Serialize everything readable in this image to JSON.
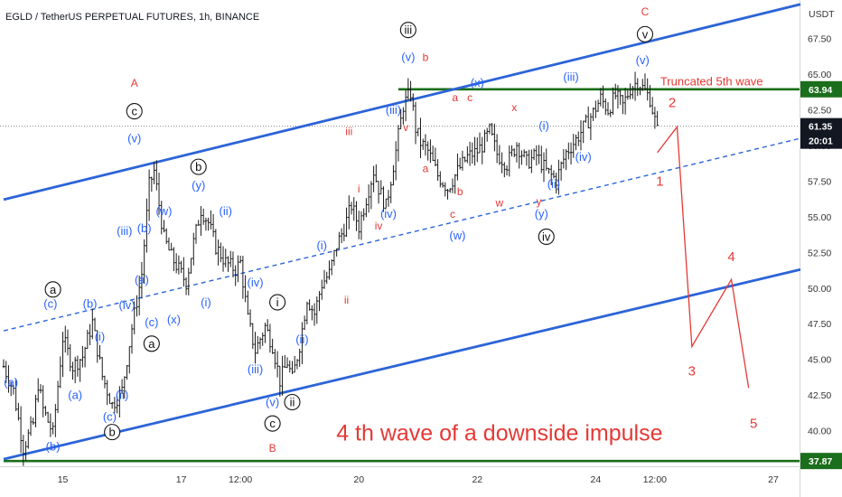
{
  "header": {
    "title": "EGLD / TetherUS PERPETUAL FUTURES, 1h, BINANCE"
  },
  "colors": {
    "blue": "#2962ff",
    "channel": "#2c64d8",
    "red": "#e53935",
    "green": "#1b6e1b",
    "black": "#111111",
    "candle": "#1a1a1a"
  },
  "chart_data": {
    "type": "candlestick",
    "y_unit": "USDT",
    "ylim": [
      37.5,
      70.2
    ],
    "y_ticks": [
      40.0,
      42.5,
      45.0,
      47.5,
      50.0,
      52.5,
      55.0,
      57.5,
      60.0,
      62.5,
      65.0,
      67.5
    ],
    "x_ticks": [
      {
        "label": "15",
        "t": 13
      },
      {
        "label": "17",
        "t": 61
      },
      {
        "label": "12:00",
        "t": 85
      },
      {
        "label": "20",
        "t": 133
      },
      {
        "label": "22",
        "t": 181
      },
      {
        "label": "24",
        "t": 229
      },
      {
        "label": "12:00",
        "t": 253
      },
      {
        "label": "27",
        "t": 301
      }
    ],
    "x_range": [
      -11,
      312
    ],
    "price_path": [
      [
        -11,
        44.5
      ],
      [
        -7,
        42.8
      ],
      [
        -3,
        38.8
      ],
      [
        1,
        40.5
      ],
      [
        3,
        43.3
      ],
      [
        5,
        41.5
      ],
      [
        9,
        39.8
      ],
      [
        13,
        46.5
      ],
      [
        17,
        44.5
      ],
      [
        21,
        45.2
      ],
      [
        25,
        47.6
      ],
      [
        29,
        43.8
      ],
      [
        33,
        41.8
      ],
      [
        37,
        42.8
      ],
      [
        41,
        47.2
      ],
      [
        45,
        51.0
      ],
      [
        48,
        57.2
      ],
      [
        50,
        58.2
      ],
      [
        54,
        53.5
      ],
      [
        57,
        52.2
      ],
      [
        60,
        51.3
      ],
      [
        63,
        50.4
      ],
      [
        66,
        53.2
      ],
      [
        69,
        55.5
      ],
      [
        72,
        54.6
      ],
      [
        75,
        52.9
      ],
      [
        79,
        51.8
      ],
      [
        83,
        51.3
      ],
      [
        85,
        51.8
      ],
      [
        88,
        47.8
      ],
      [
        91,
        45.6
      ],
      [
        95,
        47.3
      ],
      [
        98,
        46.0
      ],
      [
        101,
        43.5
      ],
      [
        104,
        44.8
      ],
      [
        106,
        43.6
      ],
      [
        109,
        46.0
      ],
      [
        112,
        49.3
      ],
      [
        115,
        48.2
      ],
      [
        118,
        50.3
      ],
      [
        121,
        51.0
      ],
      [
        124,
        53.0
      ],
      [
        127,
        54.2
      ],
      [
        130,
        55.8
      ],
      [
        133,
        54.3
      ],
      [
        136,
        56.3
      ],
      [
        139,
        58.2
      ],
      [
        141,
        57.0
      ],
      [
        144,
        55.7
      ],
      [
        148,
        59.6
      ],
      [
        151,
        62.8
      ],
      [
        154,
        63.7
      ],
      [
        156,
        61.2
      ],
      [
        158,
        60.2
      ],
      [
        161,
        59.6
      ],
      [
        165,
        57.9
      ],
      [
        169,
        57.0
      ],
      [
        173,
        58.2
      ],
      [
        177,
        59.2
      ],
      [
        181,
        59.6
      ],
      [
        183,
        60.0
      ],
      [
        186,
        61.0
      ],
      [
        189,
        59.4
      ],
      [
        193,
        58.7
      ],
      [
        197,
        60.1
      ],
      [
        201,
        58.8
      ],
      [
        205,
        59.3
      ],
      [
        209,
        58.2
      ],
      [
        213,
        57.6
      ],
      [
        217,
        59.5
      ],
      [
        221,
        60.4
      ],
      [
        225,
        61.5
      ],
      [
        228,
        62.3
      ],
      [
        231,
        63.3
      ],
      [
        234,
        62.5
      ],
      [
        237,
        63.5
      ],
      [
        240,
        62.8
      ],
      [
        243,
        64.0
      ],
      [
        246,
        64.5
      ],
      [
        249,
        63.8
      ],
      [
        251,
        63.3
      ],
      [
        254,
        61.0
      ]
    ],
    "channel_lines": [
      {
        "id": "upper",
        "from": {
          "t": -11,
          "y": 56.2
        },
        "to": {
          "t": 312,
          "y": 69.9
        },
        "style": "solid"
      },
      {
        "id": "middle",
        "from": {
          "t": -11,
          "y": 47.0
        },
        "to": {
          "t": 312,
          "y": 60.5
        },
        "style": "dashed"
      },
      {
        "id": "lower",
        "from": {
          "t": -11,
          "y": 38.0
        },
        "to": {
          "t": 312,
          "y": 51.3
        },
        "style": "solid"
      }
    ],
    "horizontal_levels": [
      {
        "id": "resistance",
        "y": 63.94,
        "from_t": 149,
        "label": "63.94"
      },
      {
        "id": "support",
        "y": 37.87,
        "from_t": -11,
        "label": "37.87"
      }
    ],
    "current_price": {
      "y": 61.35,
      "label": "61.35",
      "countdown": "20:01"
    },
    "projection_path": [
      [
        254,
        59.5
      ],
      [
        262,
        61.3
      ],
      [
        268,
        45.9
      ],
      [
        284,
        50.6
      ],
      [
        291,
        43.0
      ]
    ],
    "projection_labels": [
      {
        "text": "1",
        "t": 255,
        "y": 57.5
      },
      {
        "text": "2",
        "t": 260,
        "y": 63.0
      },
      {
        "text": "3",
        "t": 268,
        "y": 44.2
      },
      {
        "text": "4",
        "t": 284,
        "y": 52.2
      },
      {
        "text": "5",
        "t": 293,
        "y": 40.5
      }
    ],
    "wave_labels": [
      {
        "text": "(a)",
        "t": -8,
        "y": 43.4,
        "color": "blue",
        "circled": false
      },
      {
        "text": "(b)",
        "t": 9,
        "y": 38.9,
        "color": "blue",
        "circled": false
      },
      {
        "text": "(c)",
        "t": 8,
        "y": 48.9,
        "color": "blue",
        "circled": false
      },
      {
        "text": "a",
        "t": 9,
        "y": 49.9,
        "color": "black",
        "circled": true
      },
      {
        "text": "(a)",
        "t": 18,
        "y": 42.5,
        "color": "blue",
        "circled": false
      },
      {
        "text": "(b)",
        "t": 24,
        "y": 48.9,
        "color": "blue",
        "circled": false
      },
      {
        "text": "(i)",
        "t": 28,
        "y": 46.6,
        "color": "blue",
        "circled": false
      },
      {
        "text": "(ii)",
        "t": 37,
        "y": 42.5,
        "color": "blue",
        "circled": false
      },
      {
        "text": "(c)",
        "t": 32,
        "y": 41.0,
        "color": "blue",
        "circled": false
      },
      {
        "text": "b",
        "t": 33,
        "y": 39.9,
        "color": "black",
        "circled": true
      },
      {
        "text": "(iii)",
        "t": 38,
        "y": 54.0,
        "color": "blue",
        "circled": false
      },
      {
        "text": "(iv)",
        "t": 39,
        "y": 48.8,
        "color": "blue",
        "circled": false
      },
      {
        "text": "A",
        "t": 42,
        "y": 64.4,
        "color": "red",
        "circled": false
      },
      {
        "text": "c",
        "t": 42,
        "y": 62.4,
        "color": "black",
        "circled": true
      },
      {
        "text": "(v)",
        "t": 42,
        "y": 60.5,
        "color": "blue",
        "circled": false
      },
      {
        "text": "(b)",
        "t": 46,
        "y": 54.2,
        "color": "blue",
        "circled": false
      },
      {
        "text": "(a)",
        "t": 45,
        "y": 50.6,
        "color": "blue",
        "circled": false
      },
      {
        "text": "(c)",
        "t": 49,
        "y": 47.6,
        "color": "blue",
        "circled": false
      },
      {
        "text": "a",
        "t": 49,
        "y": 46.1,
        "color": "black",
        "circled": true
      },
      {
        "text": "(w)",
        "t": 54,
        "y": 55.4,
        "color": "blue",
        "circled": false
      },
      {
        "text": "(x)",
        "t": 58,
        "y": 47.8,
        "color": "blue",
        "circled": false
      },
      {
        "text": "b",
        "t": 68,
        "y": 58.5,
        "color": "black",
        "circled": true
      },
      {
        "text": "(y)",
        "t": 68,
        "y": 57.2,
        "color": "blue",
        "circled": false
      },
      {
        "text": "(i)",
        "t": 71,
        "y": 49.0,
        "color": "blue",
        "circled": false
      },
      {
        "text": "(ii)",
        "t": 79,
        "y": 55.4,
        "color": "blue",
        "circled": false
      },
      {
        "text": "(iv)",
        "t": 91,
        "y": 50.4,
        "color": "blue",
        "circled": false
      },
      {
        "text": "(iii)",
        "t": 91,
        "y": 44.3,
        "color": "blue",
        "circled": false
      },
      {
        "text": "(v)",
        "t": 98,
        "y": 42.0,
        "color": "blue",
        "circled": false
      },
      {
        "text": "c",
        "t": 98,
        "y": 40.5,
        "color": "black",
        "circled": true
      },
      {
        "text": "B",
        "t": 98,
        "y": 38.8,
        "color": "red",
        "circled": false
      },
      {
        "text": "i",
        "t": 100,
        "y": 49.0,
        "color": "black",
        "circled": true
      },
      {
        "text": "ii",
        "t": 106,
        "y": 42.0,
        "color": "black",
        "circled": true
      },
      {
        "text": "(ii)",
        "t": 110,
        "y": 46.4,
        "color": "blue",
        "circled": false
      },
      {
        "text": "(i)",
        "t": 118,
        "y": 53.0,
        "color": "blue",
        "circled": false
      },
      {
        "text": "ii",
        "t": 128,
        "y": 49.2,
        "color": "red",
        "circled": false
      },
      {
        "text": "iii",
        "t": 129,
        "y": 61.0,
        "color": "red",
        "circled": false
      },
      {
        "text": "i",
        "t": 133,
        "y": 57.0,
        "color": "red",
        "circled": false
      },
      {
        "text": "iv",
        "t": 141,
        "y": 54.4,
        "color": "red",
        "circled": false
      },
      {
        "text": "(iv)",
        "t": 145,
        "y": 55.2,
        "color": "blue",
        "circled": false
      },
      {
        "text": "(iii)",
        "t": 147,
        "y": 62.5,
        "color": "blue",
        "circled": false
      },
      {
        "text": "v",
        "t": 152,
        "y": 61.3,
        "color": "red",
        "circled": false
      },
      {
        "text": "iii",
        "t": 153,
        "y": 68.1,
        "color": "black",
        "circled": true
      },
      {
        "text": "(v)",
        "t": 153,
        "y": 66.2,
        "color": "blue",
        "circled": false
      },
      {
        "text": "b",
        "t": 160,
        "y": 66.2,
        "color": "red",
        "circled": false
      },
      {
        "text": "a",
        "t": 160,
        "y": 58.4,
        "color": "red",
        "circled": false
      },
      {
        "text": "a",
        "t": 172,
        "y": 63.4,
        "color": "red",
        "circled": false
      },
      {
        "text": "c",
        "t": 178,
        "y": 63.4,
        "color": "red",
        "circled": false
      },
      {
        "text": "(x)",
        "t": 181,
        "y": 64.4,
        "color": "blue",
        "circled": false
      },
      {
        "text": "c",
        "t": 171,
        "y": 55.2,
        "color": "red",
        "circled": false
      },
      {
        "text": "b",
        "t": 174,
        "y": 56.8,
        "color": "red",
        "circled": false
      },
      {
        "text": "(w)",
        "t": 173,
        "y": 53.7,
        "color": "blue",
        "circled": false
      },
      {
        "text": "x",
        "t": 196,
        "y": 62.7,
        "color": "red",
        "circled": false
      },
      {
        "text": "w",
        "t": 190,
        "y": 56.0,
        "color": "red",
        "circled": false
      },
      {
        "text": "y",
        "t": 206,
        "y": 56.1,
        "color": "red",
        "circled": false
      },
      {
        "text": "(i)",
        "t": 208,
        "y": 61.4,
        "color": "blue",
        "circled": false
      },
      {
        "text": "(ii)",
        "t": 212,
        "y": 57.3,
        "color": "blue",
        "circled": false
      },
      {
        "text": "(y)",
        "t": 207,
        "y": 55.2,
        "color": "blue",
        "circled": false
      },
      {
        "text": "iv",
        "t": 209,
        "y": 53.6,
        "color": "black",
        "circled": true
      },
      {
        "text": "(iii)",
        "t": 219,
        "y": 64.8,
        "color": "blue",
        "circled": false
      },
      {
        "text": "(iv)",
        "t": 224,
        "y": 59.2,
        "color": "blue",
        "circled": false
      },
      {
        "text": "C",
        "t": 249,
        "y": 69.4,
        "color": "red",
        "circled": false
      },
      {
        "text": "v",
        "t": 249,
        "y": 67.8,
        "color": "black",
        "circled": true
      },
      {
        "text": "(v)",
        "t": 248,
        "y": 66.0,
        "color": "blue",
        "circled": false
      }
    ],
    "annotations": [
      {
        "id": "truncated",
        "text": "Truncated 5th wave",
        "t": 276,
        "y": 64.2
      },
      {
        "id": "main",
        "text": "4 th wave of a downside impulse",
        "t": 190,
        "y": 39.3
      }
    ]
  }
}
